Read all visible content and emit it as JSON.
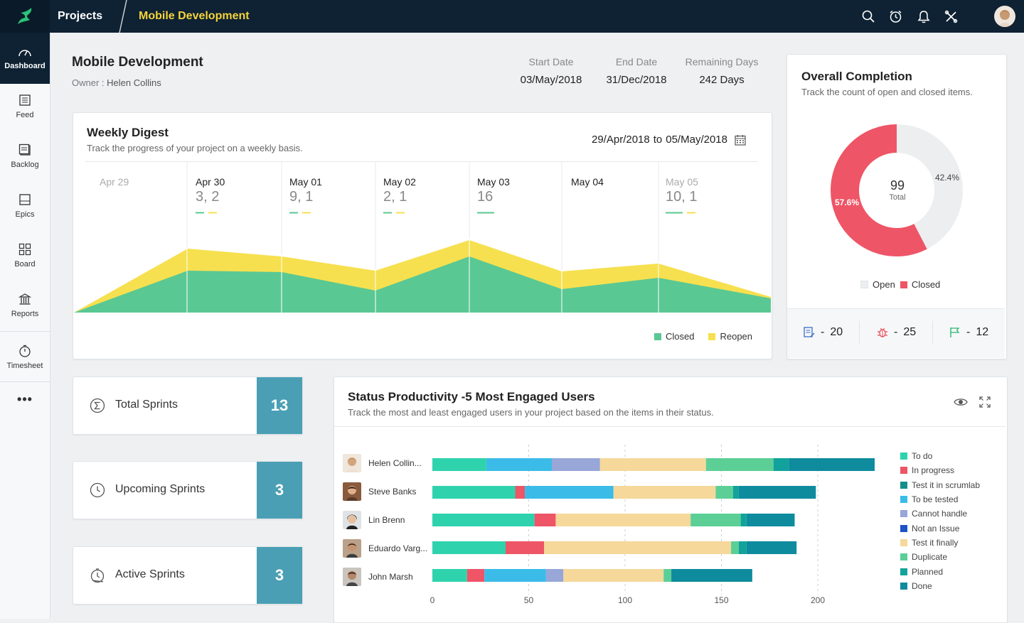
{
  "topbar": {
    "section": "Projects",
    "project": "Mobile Development"
  },
  "icons": {
    "search": "search-icon",
    "timer": "timer-icon",
    "bell": "bell-icon",
    "tools": "tools-icon"
  },
  "sidebar": {
    "items": [
      {
        "label": "Dashboard",
        "icon": "dashboard-icon"
      },
      {
        "label": "Feed",
        "icon": "feed-icon"
      },
      {
        "label": "Backlog",
        "icon": "backlog-icon"
      },
      {
        "label": "Epics",
        "icon": "epics-icon"
      },
      {
        "label": "Board",
        "icon": "board-icon"
      },
      {
        "label": "Reports",
        "icon": "reports-icon"
      },
      {
        "label": "Timesheet",
        "icon": "timesheet-icon"
      }
    ],
    "more": "•••"
  },
  "header": {
    "title": "Mobile Development",
    "owner_label": "Owner :",
    "owner": "Helen Collins",
    "start_label": "Start Date",
    "start": "03/May/2018",
    "end_label": "End Date",
    "end": "31/Dec/2018",
    "remaining_label": "Remaining Days",
    "remaining": "242 Days"
  },
  "weekly": {
    "title": "Weekly Digest",
    "subtitle": "Track the progress of your project on a weekly basis.",
    "range_from": "29/Apr/2018",
    "range_to_word": "to",
    "range_to": "05/May/2018",
    "days": [
      {
        "label": "Apr 29",
        "value": ""
      },
      {
        "label": "Apr 30",
        "value": "3, 2"
      },
      {
        "label": "May 01",
        "value": "9, 1"
      },
      {
        "label": "May 02",
        "value": "2, 1"
      },
      {
        "label": "May 03",
        "value": "16"
      },
      {
        "label": "May 04",
        "value": ""
      },
      {
        "label": "May 05",
        "value": "10, 1"
      }
    ],
    "legend": {
      "closed": "Closed",
      "reopen": "Reopen"
    },
    "colors": {
      "closed": "#5ac893",
      "reopen": "#f7e04f"
    }
  },
  "overall": {
    "title": "Overall Completion",
    "subtitle": "Track the count of open and closed items.",
    "total": "99",
    "total_label": "Total",
    "open_pct": "42.4%",
    "closed_pct": "57.6%",
    "open_fraction": 0.424,
    "legend_open": "Open",
    "legend_closed": "Closed",
    "colors": {
      "open": "#eceef0",
      "closed": "#ee5566"
    },
    "stats": [
      {
        "icon": "story-icon",
        "value": "20"
      },
      {
        "icon": "bug-icon",
        "value": "25"
      },
      {
        "icon": "flag-icon",
        "value": "12"
      }
    ],
    "dash": "-"
  },
  "sprints": [
    {
      "label": "Total Sprints",
      "value": "13",
      "icon": "sigma-icon"
    },
    {
      "label": "Upcoming Sprints",
      "value": "3",
      "icon": "clock-icon"
    },
    {
      "label": "Active Sprints",
      "value": "3",
      "icon": "stopwatch-icon"
    }
  ],
  "productivity": {
    "title": "Status Productivity -5 Most Engaged Users",
    "subtitle": "Track the most and least engaged users in your project based on the items in their status.",
    "icons": {
      "view": "eye-icon",
      "expand": "expand-icon"
    }
  },
  "chart_data": {
    "type": "bar",
    "orientation": "horizontal",
    "stacked": true,
    "categories": [
      "Helen Collin...",
      "Steve Banks",
      "Lin Brenn",
      "Eduardo Varg...",
      "John Marsh"
    ],
    "xlim": [
      0,
      220
    ],
    "xticks": [
      "0",
      "50",
      "100",
      "150",
      "200"
    ],
    "series": [
      {
        "name": "To do",
        "color": "#2ed3ad",
        "values": [
          28,
          43,
          53,
          38,
          18
        ]
      },
      {
        "name": "In progress",
        "color": "#ee5566",
        "values": [
          0,
          5,
          11,
          20,
          9
        ]
      },
      {
        "name": "Test it in scrumlab",
        "color": "#138f8a",
        "values": [
          0,
          0,
          0,
          0,
          0
        ]
      },
      {
        "name": "To be tested",
        "color": "#3bbce8",
        "values": [
          34,
          46,
          0,
          0,
          32
        ]
      },
      {
        "name": "Cannot handle",
        "color": "#98a6d8",
        "values": [
          25,
          0,
          0,
          0,
          9
        ]
      },
      {
        "name": "Not an Issue",
        "color": "#1e52c8",
        "values": [
          0,
          0,
          0,
          0,
          0
        ]
      },
      {
        "name": "Test it finally",
        "color": "#f5d89a",
        "values": [
          55,
          53,
          70,
          97,
          52
        ]
      },
      {
        "name": "Duplicate",
        "color": "#5ccf97",
        "values": [
          35,
          9,
          26,
          4,
          4
        ]
      },
      {
        "name": "Planned",
        "color": "#11a39b",
        "values": [
          8,
          3,
          3,
          4,
          0
        ]
      },
      {
        "name": "Done",
        "color": "#0f8b9e",
        "values": [
          46,
          40,
          25,
          26,
          42
        ]
      }
    ]
  }
}
